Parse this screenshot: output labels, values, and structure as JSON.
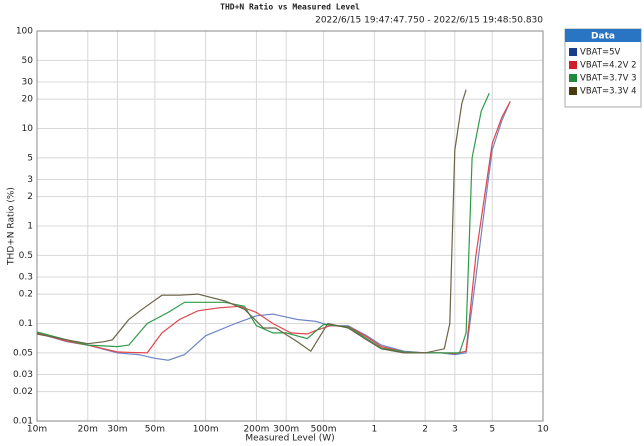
{
  "chart_data": {
    "type": "line",
    "title": "THD+N Ratio vs Measured Level",
    "subtitle": "2022/6/15 19:47:47.750 - 2022/6/15 19:48:50.830",
    "x_label": "Measured Level (W)",
    "y_label": "THD+N Ratio (%)",
    "legend_title": "Data",
    "legend": "outside-right",
    "log_x": true,
    "log_y": true,
    "grid": true,
    "xlim": [
      0.01,
      10
    ],
    "ylim": [
      0.01,
      100
    ],
    "xticks": [
      {
        "value": 0.01,
        "label": "10m"
      },
      {
        "value": 0.02,
        "label": "20m"
      },
      {
        "value": 0.03,
        "label": "30m"
      },
      {
        "value": 0.05,
        "label": "50m"
      },
      {
        "value": 0.1,
        "label": "100m"
      },
      {
        "value": 0.2,
        "label": "200m"
      },
      {
        "value": 0.3,
        "label": "300m"
      },
      {
        "value": 0.5,
        "label": "500m"
      },
      1,
      2,
      3,
      5,
      10
    ],
    "yticks": [
      100,
      50,
      30,
      20,
      10,
      5,
      3,
      2,
      1,
      0.5,
      0.3,
      0.2,
      0.1,
      0.05,
      0.03,
      0.02,
      0.01
    ],
    "series": [
      {
        "name": "VBAT=5V",
        "color": "#6f86c6",
        "legend_color": "#1a3a8a",
        "x": [
          0.01,
          0.015,
          0.02,
          0.03,
          0.04,
          0.05,
          0.06,
          0.075,
          0.1,
          0.15,
          0.2,
          0.25,
          0.35,
          0.45,
          0.55,
          0.7,
          0.9,
          1.1,
          1.5,
          2,
          2.5,
          3,
          3.5,
          4,
          4.5,
          5,
          5.7,
          6.3
        ],
        "values": [
          0.08,
          0.065,
          0.06,
          0.05,
          0.048,
          0.044,
          0.042,
          0.048,
          0.075,
          0.1,
          0.12,
          0.125,
          0.11,
          0.105,
          0.095,
          0.095,
          0.075,
          0.06,
          0.052,
          0.05,
          0.05,
          0.048,
          0.05,
          0.3,
          1.5,
          6,
          12,
          18
        ]
      },
      {
        "name": "VBAT=4.2V 2",
        "color": "#e0454b",
        "legend_color": "#d0202a",
        "x": [
          0.01,
          0.015,
          0.02,
          0.03,
          0.045,
          0.055,
          0.07,
          0.09,
          0.12,
          0.16,
          0.2,
          0.25,
          0.32,
          0.4,
          0.45,
          0.55,
          0.7,
          0.9,
          1.1,
          1.5,
          2,
          2.5,
          3,
          3.5,
          4,
          4.5,
          5,
          5.7,
          6.4
        ],
        "values": [
          0.08,
          0.066,
          0.06,
          0.051,
          0.05,
          0.08,
          0.11,
          0.135,
          0.145,
          0.15,
          0.13,
          0.1,
          0.08,
          0.078,
          0.085,
          0.095,
          0.093,
          0.073,
          0.058,
          0.051,
          0.05,
          0.05,
          0.049,
          0.052,
          0.5,
          2,
          7,
          13,
          19
        ]
      },
      {
        "name": "VBAT=3.7V 3",
        "color": "#2e9a48",
        "legend_color": "#1f8a3a",
        "x": [
          0.01,
          0.015,
          0.02,
          0.03,
          0.035,
          0.045,
          0.06,
          0.075,
          0.1,
          0.13,
          0.17,
          0.2,
          0.25,
          0.3,
          0.4,
          0.5,
          0.7,
          0.9,
          1.1,
          1.5,
          2,
          2.5,
          3.2,
          3.5,
          3.8,
          4.3,
          4.8
        ],
        "values": [
          0.082,
          0.068,
          0.06,
          0.058,
          0.06,
          0.1,
          0.13,
          0.165,
          0.165,
          0.165,
          0.15,
          0.095,
          0.08,
          0.08,
          0.07,
          0.098,
          0.092,
          0.07,
          0.056,
          0.051,
          0.05,
          0.05,
          0.05,
          0.08,
          5,
          15,
          23
        ]
      },
      {
        "name": "VBAT=3.3V 4",
        "color": "#6b6446",
        "legend_color": "#4a3a10",
        "x": [
          0.01,
          0.015,
          0.02,
          0.025,
          0.028,
          0.035,
          0.042,
          0.055,
          0.07,
          0.09,
          0.13,
          0.17,
          0.22,
          0.26,
          0.35,
          0.42,
          0.53,
          0.7,
          0.9,
          1.1,
          1.5,
          2,
          2.6,
          2.8,
          3,
          3.3,
          3.5
        ],
        "values": [
          0.078,
          0.068,
          0.062,
          0.065,
          0.068,
          0.11,
          0.14,
          0.195,
          0.195,
          0.2,
          0.17,
          0.14,
          0.09,
          0.09,
          0.065,
          0.052,
          0.1,
          0.09,
          0.068,
          0.055,
          0.05,
          0.05,
          0.055,
          0.1,
          6,
          18,
          25
        ]
      }
    ]
  }
}
